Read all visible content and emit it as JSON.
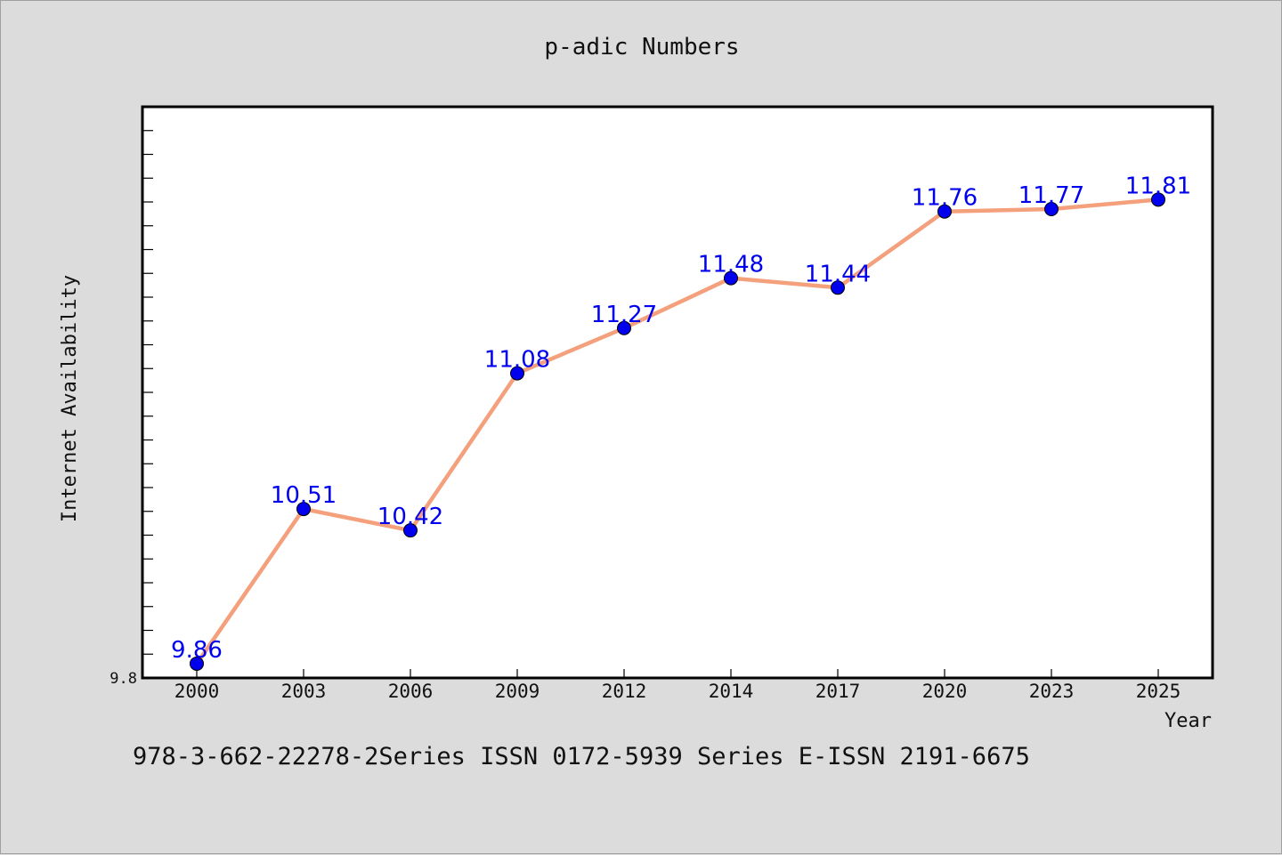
{
  "chart_data": {
    "type": "line",
    "title": "p-adic Numbers",
    "xlabel": "Year",
    "ylabel": "Internet Availability",
    "categories": [
      "2000",
      "2003",
      "2006",
      "2009",
      "2012",
      "2014",
      "2017",
      "2020",
      "2023",
      "2025"
    ],
    "series": [
      {
        "values": [
          9.86,
          10.51,
          10.42,
          11.08,
          11.27,
          11.48,
          11.44,
          11.76,
          11.77,
          11.81
        ],
        "line_color": "#f4a07c",
        "marker_color": "#0000ee",
        "label_color": "#0000ee"
      }
    ],
    "data_labels": [
      "9.86",
      "10.51",
      "10.42",
      "11.08",
      "11.27",
      "11.48",
      "11.44",
      "11.76",
      "11.77",
      "11.81"
    ],
    "ylim": [
      9.8,
      12.2
    ],
    "y_tick_labels": [
      "9.8"
    ],
    "grid": false,
    "background": "#ffffff"
  },
  "footnote": "978-3-662-22278-2Series ISSN 0172-5939 Series E-ISSN 2191-6675"
}
